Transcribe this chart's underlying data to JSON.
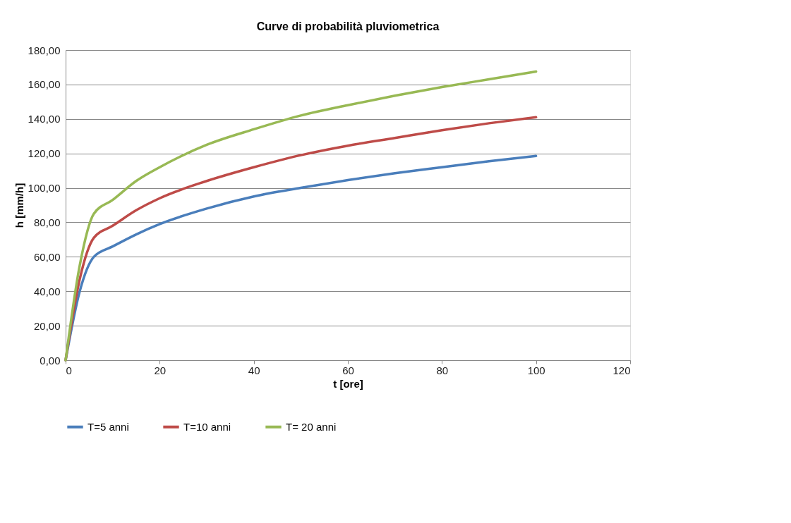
{
  "chart_data": {
    "type": "line",
    "title": "Curve di probabilità pluviometrica",
    "xlabel": "t [ore]",
    "ylabel": "h [mm/h]",
    "x": [
      0,
      3,
      6,
      10,
      15,
      20,
      30,
      40,
      50,
      60,
      70,
      80,
      90,
      100
    ],
    "series": [
      {
        "name": "T=5 anni",
        "color": "#4a7ebb",
        "values": [
          0,
          40,
          60,
          66,
          73,
          79,
          88,
          95,
          100,
          104.5,
          108.5,
          112,
          115.5,
          118.5
        ]
      },
      {
        "name": "T=10 anni",
        "color": "#be4b48",
        "values": [
          0,
          47,
          71,
          78,
          87,
          94,
          104,
          112,
          119,
          124.5,
          129,
          133.5,
          137.5,
          141
        ]
      },
      {
        "name": "T= 20 anni",
        "color": "#98b954",
        "values": [
          0,
          55,
          85,
          93,
          104,
          112,
          125,
          134,
          142,
          148,
          153.5,
          158.5,
          163,
          167.5
        ]
      }
    ],
    "xlim": [
      0,
      120
    ],
    "xticks": [
      0,
      20,
      40,
      60,
      80,
      100,
      120
    ],
    "ylim": [
      0,
      180
    ],
    "yticks": [
      {
        "value": 0,
        "label": "0,00"
      },
      {
        "value": 20,
        "label": "20,00"
      },
      {
        "value": 40,
        "label": "40,00"
      },
      {
        "value": 60,
        "label": "60,00"
      },
      {
        "value": 80,
        "label": "80,00"
      },
      {
        "value": 100,
        "label": "100,00"
      },
      {
        "value": 120,
        "label": "120,00"
      },
      {
        "value": 140,
        "label": "140,00"
      },
      {
        "value": 160,
        "label": "160,00"
      },
      {
        "value": 180,
        "label": "180,00"
      }
    ],
    "grid": "y",
    "legend": "bottom",
    "marker": "none",
    "line_style": "solid"
  }
}
